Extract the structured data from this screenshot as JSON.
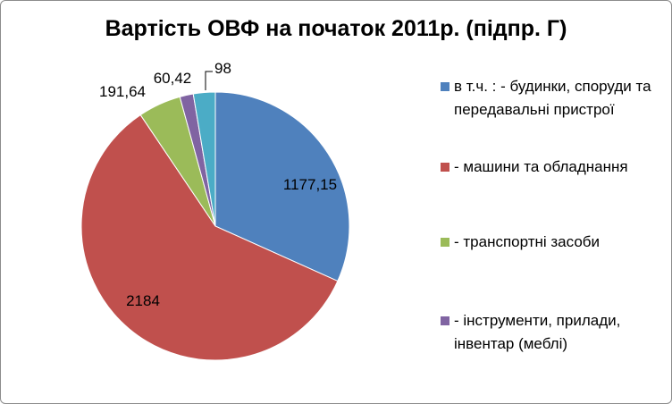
{
  "chart_data": {
    "type": "pie",
    "title": "Вартість ОВФ на початок 2011р. (підпр. Г)",
    "categories": [
      "в т.ч. : - будинки, споруди та передавальні пристрої",
      "- машини та обладнання",
      "- транспортні засоби",
      "- інструменти, прилади, інвентар (меблі)",
      ""
    ],
    "values": [
      1177.15,
      2184,
      191.64,
      60.42,
      98
    ],
    "labels": [
      "1177,15",
      "2184",
      "191,64",
      "60,42",
      "98"
    ],
    "colors": [
      "#4f81bd",
      "#c0504d",
      "#9bbb59",
      "#8064a2",
      "#4bacc6"
    ],
    "legend_position": "right"
  }
}
